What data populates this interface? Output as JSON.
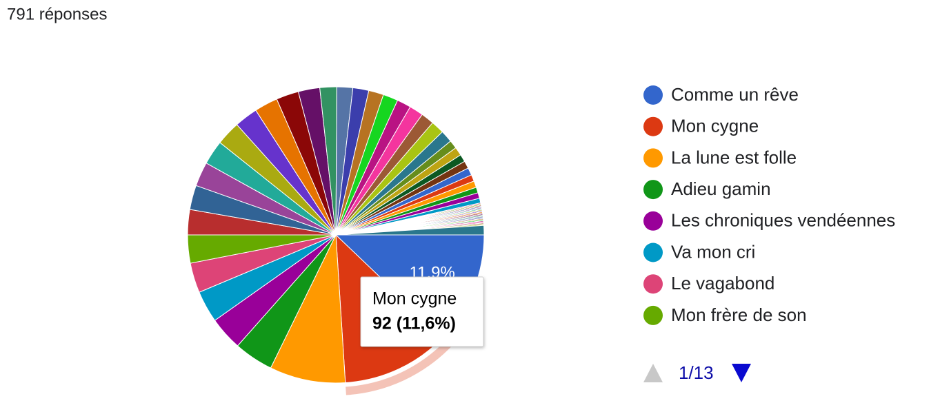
{
  "header": {
    "title": "791 réponses"
  },
  "chart_data": {
    "type": "pie",
    "categories": [
      "Comme un rêve",
      "Mon cygne",
      "La lune est folle",
      "Adieu gamin",
      "Les chroniques vendéennes",
      "Va mon cri",
      "Le vagabond",
      "Mon frère de son",
      null,
      null,
      null,
      null,
      null,
      null,
      null,
      null,
      null,
      null,
      null,
      null,
      null,
      null,
      null,
      null,
      null,
      null,
      null,
      null,
      null,
      null,
      null,
      null,
      null,
      null,
      null,
      null,
      null,
      null,
      null,
      null,
      null,
      null,
      null,
      null,
      null,
      null,
      null,
      null,
      null,
      null,
      null,
      null,
      null,
      null,
      null,
      null,
      null,
      null
    ],
    "values": [
      11.9,
      11.6,
      8.1,
      4.2,
      3.6,
      3.4,
      3.2,
      3.0,
      2.7,
      2.6,
      2.6,
      2.6,
      2.6,
      2.5,
      2.5,
      2.4,
      2.3,
      1.8,
      1.7,
      1.7,
      1.6,
      1.6,
      1.5,
      1.5,
      1.4,
      1.4,
      1.3,
      0.9,
      0.9,
      0.8,
      0.8,
      0.8,
      0.7,
      0.7,
      0.6,
      0.6,
      0.5,
      0.12,
      0.12,
      0.12,
      0.12,
      0.12,
      0.12,
      0.12,
      0.12,
      0.12,
      0.12,
      0.12,
      0.12,
      0.12,
      0.12,
      0.12,
      0.12,
      0.12,
      0.12,
      0.12,
      0.12,
      1.0
    ],
    "value_labels": [
      "11,9%"
    ],
    "palette": [
      "#3366cc",
      "#dc3912",
      "#ff9900",
      "#109618",
      "#990099",
      "#0099c6",
      "#dd4477",
      "#66aa00",
      "#b82e2e",
      "#316395",
      "#994499",
      "#22aa99",
      "#aaaa11",
      "#6633cc",
      "#e67300",
      "#8b0707",
      "#651067",
      "#329262",
      "#5574a6",
      "#3b3eac",
      "#b77322",
      "#16d620",
      "#b91383",
      "#f4359e",
      "#9c5935",
      "#a9c413",
      "#2a778d",
      "#668d1c",
      "#bea413",
      "#0c5922",
      "#743411"
    ],
    "legend_page": "1/13",
    "tooltip": {
      "title": "Mon cygne",
      "value": "92 (11,6%)"
    }
  }
}
